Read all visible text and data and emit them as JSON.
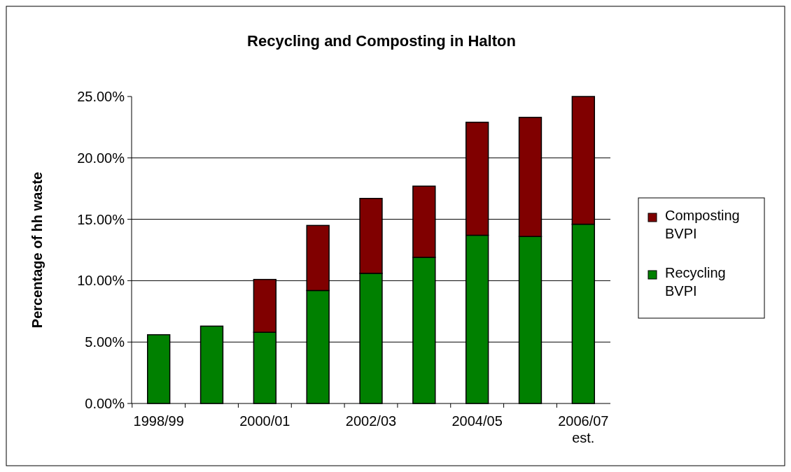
{
  "chart_data": {
    "type": "bar",
    "title": "Recycling and Composting in Halton",
    "ylabel": "Percentage of hh waste",
    "categories": [
      "1998/99",
      null,
      "2000/01",
      null,
      "2002/03",
      null,
      "2004/05",
      null,
      "2006/07 est."
    ],
    "series": [
      {
        "name": "Recycling BVPI",
        "color": "#008000",
        "values": [
          5.6,
          6.3,
          5.8,
          9.2,
          10.6,
          11.9,
          13.7,
          13.6,
          14.6
        ]
      },
      {
        "name": "Composting BVPI",
        "color": "#800000",
        "values": [
          null,
          null,
          4.3,
          5.3,
          6.1,
          5.8,
          9.2,
          9.7,
          10.4
        ]
      }
    ],
    "stacked": true,
    "ylim": [
      0,
      25
    ],
    "yticks": [
      {
        "value": 0,
        "label": "0.00%"
      },
      {
        "value": 5,
        "label": "5.00%"
      },
      {
        "value": 10,
        "label": "10.00%"
      },
      {
        "value": 15,
        "label": "15.00%"
      },
      {
        "value": 20,
        "label": "20.00%"
      },
      {
        "value": 25,
        "label": "25.00%"
      }
    ],
    "grid": "y",
    "legend": "right"
  }
}
